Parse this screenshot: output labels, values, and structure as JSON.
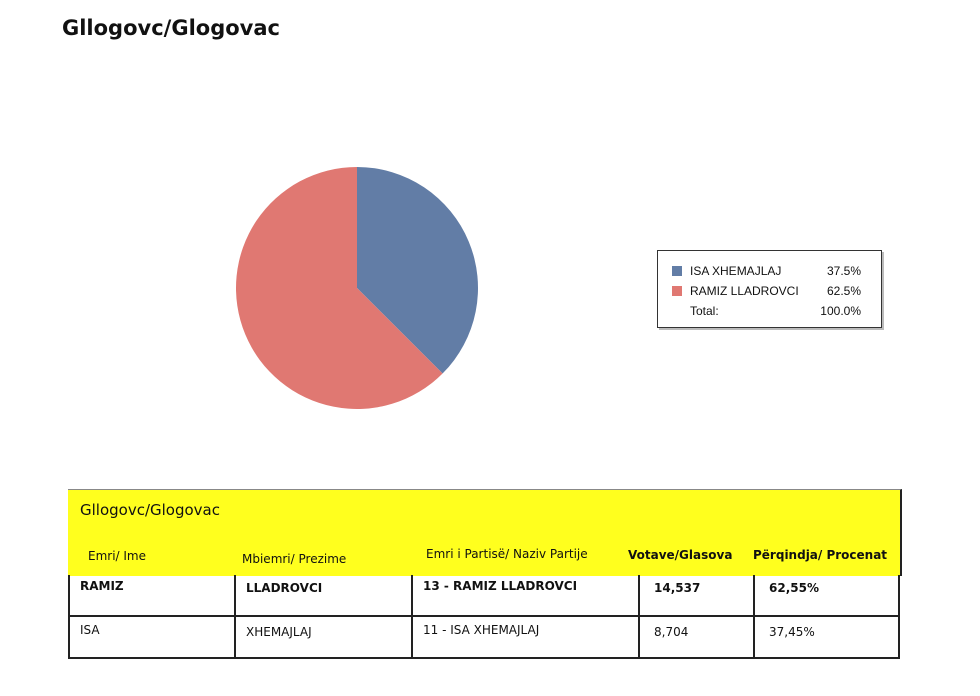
{
  "title": "Gllogovc/Glogovac",
  "chart_data": {
    "type": "pie",
    "title": "",
    "slices": [
      {
        "label": "ISA XHEMAJLAJ",
        "percent": 37.5,
        "color": "#627da6"
      },
      {
        "label": "RAMIZ LLADROVCI",
        "percent": 62.5,
        "color": "#e07872"
      }
    ],
    "legend": {
      "entries": [
        {
          "name": "ISA XHEMAJLAJ",
          "value": "37.5%",
          "color": "#627da6"
        },
        {
          "name": "RAMIZ LLADROVCI",
          "value": "62.5%",
          "color": "#e07872"
        }
      ],
      "total_label": "Total:",
      "total_value": "100.0%",
      "placement": "right"
    }
  },
  "table": {
    "title": "Gllogovc/Glogovac",
    "header_color": "#ffff1e",
    "headers": [
      "Emri/ Ime",
      "Mbiemri/ Prezime",
      "Emri i Partisë/ Naziv Partije",
      "Votave/Glasova",
      "Përqindja/ Procenat"
    ],
    "rows": [
      [
        "RAMIZ",
        "LLADROVCI",
        "13 - RAMIZ LLADROVCI",
        "14,537",
        "62,55%"
      ],
      [
        "ISA",
        "XHEMAJLAJ",
        "11 - ISA XHEMAJLAJ",
        "8,704",
        "37,45%"
      ]
    ]
  }
}
